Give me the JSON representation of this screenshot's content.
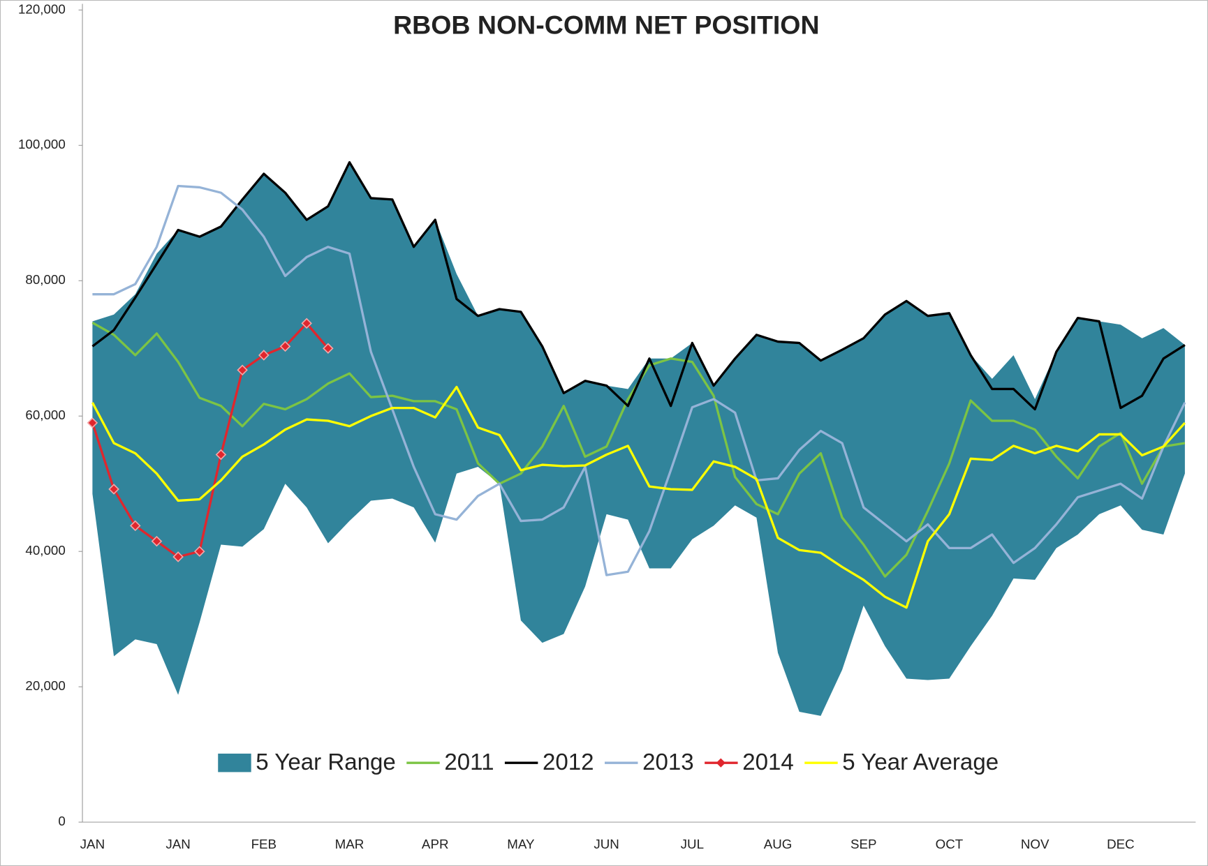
{
  "chart_data": {
    "type": "line",
    "title": "RBOB NON-COMM NET  POSITION",
    "categories": [
      "JAN",
      null,
      null,
      null,
      "JAN",
      null,
      null,
      null,
      "FEB",
      null,
      null,
      null,
      "MAR",
      null,
      null,
      null,
      "APR",
      null,
      null,
      null,
      "MAY",
      null,
      null,
      null,
      "JUN",
      null,
      null,
      null,
      "JUL",
      null,
      null,
      null,
      "AUG",
      null,
      null,
      null,
      "SEP",
      null,
      null,
      null,
      "OCT",
      null,
      null,
      null,
      "NOV",
      null,
      null,
      null,
      "DEC",
      null,
      null,
      null
    ],
    "ylim": [
      0,
      120000
    ],
    "yticks": [
      0,
      {
        "value": 20000,
        "label": "20,000"
      },
      {
        "value": 40000,
        "label": "40,000"
      },
      {
        "value": 60000,
        "label": "60,000"
      },
      {
        "value": 80000,
        "label": "80,000"
      },
      {
        "value": 100000,
        "label": "100,000"
      },
      {
        "value": 120000,
        "label": "120,000"
      }
    ],
    "grid": false,
    "legend": "bottom",
    "series": [
      {
        "name": "5 Year Range",
        "type": "range",
        "color": "#31849b",
        "low": [
          48500,
          24500,
          27000,
          26300,
          18800,
          29500,
          41000,
          40700,
          43300,
          50000,
          46500,
          41200,
          44500,
          47500,
          47800,
          46500,
          41300,
          51500,
          52500,
          50000,
          29800,
          26500,
          27800,
          34800,
          45500,
          44700,
          37500,
          37500,
          41800,
          43800,
          46800,
          45000,
          25000,
          16300,
          15700,
          22500,
          32000,
          26000,
          21200,
          21000,
          21200,
          26000,
          30500,
          36000,
          35800,
          40500,
          42500,
          45500,
          46800,
          43200,
          42500,
          51500
        ],
        "high": [
          74000,
          75000,
          78000,
          84000,
          87500,
          86500,
          88000,
          92000,
          95800,
          93000,
          89000,
          91000,
          97500,
          92200,
          92000,
          85000,
          89000,
          81000,
          74800,
          75800,
          75400,
          70300,
          63400,
          65200,
          64500,
          64000,
          68500,
          68500,
          70800,
          64500,
          68500,
          72000,
          71000,
          70800,
          68200,
          69800,
          71500,
          75000,
          77000,
          74800,
          75200,
          69000,
          65500,
          69000,
          62500,
          69500,
          74500,
          74000,
          73500,
          71500,
          73000,
          70500
        ]
      },
      {
        "name": "2011",
        "color": "#7cc444",
        "values": [
          73800,
          72000,
          69000,
          72200,
          68000,
          62700,
          61500,
          58500,
          61800,
          61000,
          62500,
          64800,
          66300,
          62800,
          63000,
          62200,
          62200,
          61000,
          53000,
          50000,
          51500,
          55500,
          61500,
          54000,
          55500,
          62500,
          67500,
          68500,
          68000,
          63000,
          51000,
          47000,
          45500,
          51500,
          54500,
          45000,
          41000,
          36300,
          39500,
          46000,
          53000,
          62300,
          59300,
          59300,
          58000,
          54000,
          50800,
          55500,
          57500,
          50000,
          55500,
          56000
        ]
      },
      {
        "name": "2012",
        "color": "#000000",
        "values": [
          70300,
          72700,
          77500,
          82500,
          87500,
          86500,
          88000,
          92000,
          95800,
          93000,
          89000,
          91000,
          97500,
          92200,
          92000,
          85000,
          89000,
          77300,
          74800,
          75800,
          75400,
          70300,
          63400,
          65200,
          64500,
          61500,
          68500,
          61500,
          70800,
          64500,
          68500,
          72000,
          71000,
          70800,
          68200,
          69800,
          71500,
          75000,
          77000,
          74800,
          75200,
          69000,
          64000,
          64000,
          61000,
          69500,
          74500,
          74000,
          61200,
          63000,
          68500,
          70500
        ]
      },
      {
        "name": "2013",
        "color": "#95b3d7",
        "values": [
          78000,
          78000,
          79500,
          85000,
          94000,
          93800,
          93000,
          90500,
          86500,
          80700,
          83500,
          85000,
          84000,
          69500,
          61000,
          52500,
          45500,
          44700,
          48200,
          50000,
          44500,
          44700,
          46500,
          52500,
          36500,
          37000,
          43000,
          52000,
          61300,
          62500,
          60500,
          50500,
          50800,
          55000,
          57800,
          56000,
          46500,
          44000,
          41500,
          44000,
          40500,
          40500,
          42500,
          38300,
          40500,
          44000,
          48000,
          49000,
          50000,
          47800,
          55500,
          62000
        ]
      },
      {
        "name": "2014",
        "color": "#e0262d",
        "marker": "diamond",
        "values": [
          59000,
          49200,
          43800,
          41500,
          39200,
          40000,
          54300,
          66800,
          69000,
          70300,
          73700,
          70000,
          null,
          null,
          null,
          null,
          null,
          null,
          null,
          null,
          null,
          null,
          null,
          null,
          null,
          null,
          null,
          null,
          null,
          null,
          null,
          null,
          null,
          null,
          null,
          null,
          null,
          null,
          null,
          null,
          null,
          null,
          null,
          null,
          null,
          null,
          null,
          null,
          null,
          null,
          null,
          null
        ]
      },
      {
        "name": "5 Year Average",
        "color": "#ffff00",
        "values": [
          62000,
          56000,
          54500,
          51500,
          47500,
          47700,
          50500,
          54000,
          55800,
          58000,
          59500,
          59300,
          58500,
          60000,
          61200,
          61200,
          59800,
          64300,
          58300,
          57200,
          52000,
          52800,
          52600,
          52700,
          54300,
          55600,
          49600,
          49200,
          49100,
          53300,
          52500,
          50700,
          42000,
          40200,
          39800,
          37700,
          35800,
          33300,
          31700,
          41500,
          45500,
          53700,
          53500,
          55600,
          54500,
          55600,
          54800,
          57300,
          57300,
          54200,
          55500,
          59000
        ]
      }
    ]
  }
}
